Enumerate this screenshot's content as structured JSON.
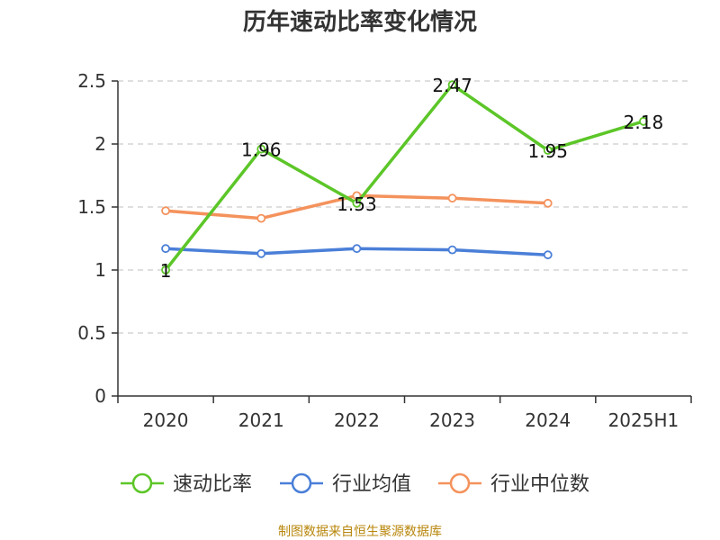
{
  "title": "历年速动比率变化情况",
  "source_note": "制图数据来自恒生聚源数据库",
  "chart_data": {
    "type": "line",
    "title": "历年速动比率变化情况",
    "categories": [
      "2020",
      "2021",
      "2022",
      "2023",
      "2024",
      "2025H1"
    ],
    "ylim": [
      0,
      2.5
    ],
    "yticks": [
      0,
      0.5,
      1,
      1.5,
      2,
      2.5
    ],
    "ytick_labels": [
      "0",
      "0.5",
      "1",
      "1.5",
      "2",
      "2.5"
    ],
    "grid": true,
    "legend_position": "bottom",
    "series": [
      {
        "name": "速动比率",
        "color": "#5cc628",
        "values": [
          1,
          1.96,
          1.53,
          2.47,
          1.95,
          2.18
        ],
        "labels": [
          "1",
          "1.96",
          "1.53",
          "2.47",
          "1.95",
          "2.18"
        ]
      },
      {
        "name": "行业均值",
        "color": "#4a7fd8",
        "values": [
          1.17,
          1.13,
          1.17,
          1.16,
          1.12,
          null
        ]
      },
      {
        "name": "行业中位数",
        "color": "#f4925c",
        "values": [
          1.47,
          1.41,
          1.59,
          1.57,
          1.53,
          null
        ]
      }
    ]
  }
}
